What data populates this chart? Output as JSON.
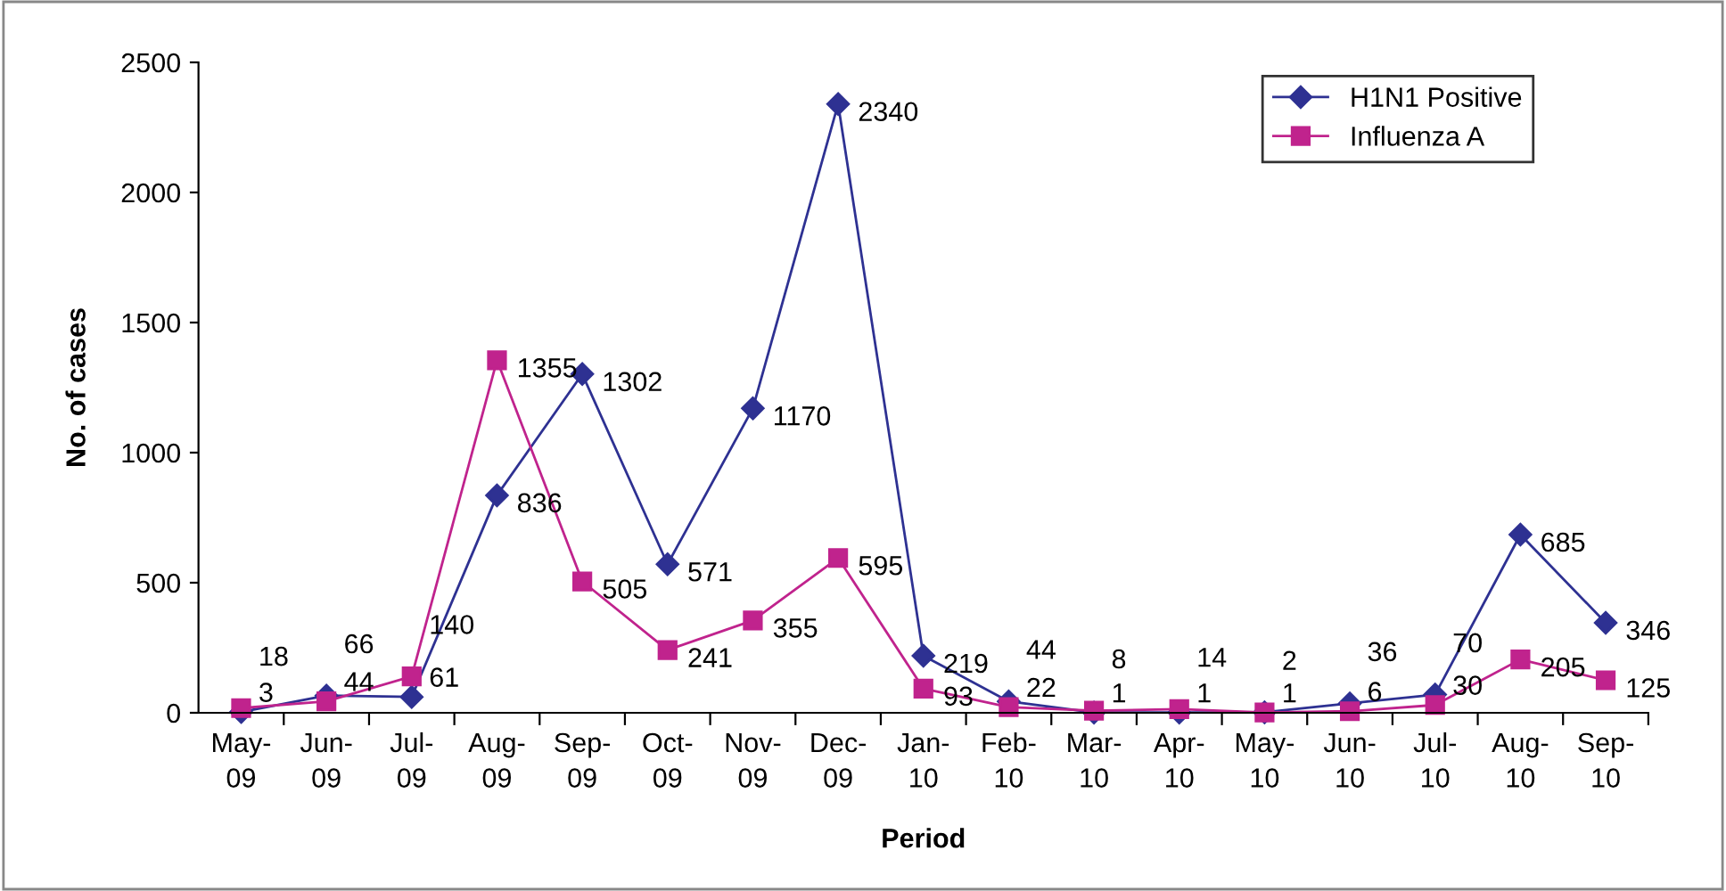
{
  "chart_data": {
    "type": "line",
    "xlabel": "Period",
    "ylabel": "No. of cases",
    "categories": [
      "May-\n09",
      "Jun-\n09",
      "Jul-\n09",
      "Aug-\n09",
      "Sep-\n09",
      "Oct-\n09",
      "Nov-\n09",
      "Dec-\n09",
      "Jan-\n10",
      "Feb-\n10",
      "Mar-\n10",
      "Apr-\n10",
      "May-\n10",
      "Jun-\n10",
      "Jul-\n10",
      "Aug-\n10",
      "Sep-\n10"
    ],
    "series": [
      {
        "name": "H1N1 Positive",
        "color": "#2e3192",
        "marker": "diamond",
        "values": [
          3,
          66,
          61,
          836,
          1302,
          571,
          1170,
          2340,
          219,
          44,
          1,
          1,
          2,
          36,
          70,
          685,
          346
        ]
      },
      {
        "name": "Influenza A",
        "color": "#c0238d",
        "marker": "square",
        "values": [
          18,
          44,
          140,
          1355,
          505,
          241,
          355,
          595,
          93,
          22,
          8,
          14,
          1,
          6,
          30,
          205,
          125
        ]
      }
    ],
    "ylim": [
      0,
      2500
    ],
    "yticks": [
      0,
      500,
      1000,
      1500,
      2000,
      2500
    ],
    "grid": false,
    "legend": "top right",
    "data_labels": true,
    "line_style": "solid"
  }
}
